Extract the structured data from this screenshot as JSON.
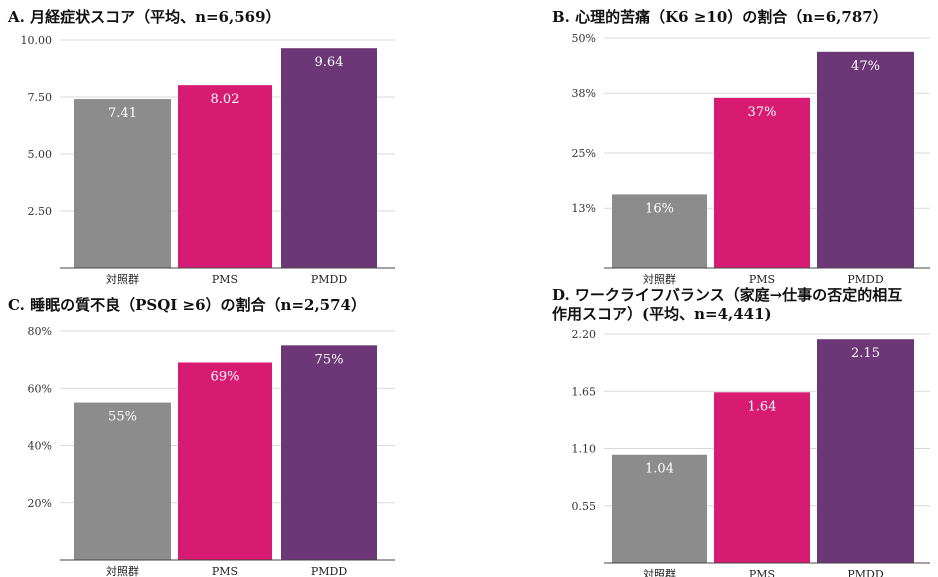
{
  "colors": {
    "control": "#8c8c8c",
    "pms": "#d81b72",
    "pmdd": "#6c3777"
  },
  "chart_data": [
    {
      "type": "bar",
      "title": "A. 月経症状スコア（平均、n=6,569）",
      "categories": [
        "対照群",
        "PMS",
        "PMDD"
      ],
      "values": [
        7.41,
        8.02,
        9.64
      ],
      "value_labels": [
        "7.41",
        "8.02",
        "9.64"
      ],
      "yticks": [
        "2.50",
        "5.00",
        "7.50",
        "10.00"
      ],
      "ylim": [
        0,
        10
      ]
    },
    {
      "type": "bar",
      "title": "B. 心理的苦痛（K6 ≥10）の割合（n=6,787）",
      "categories": [
        "対照群",
        "PMS",
        "PMDD"
      ],
      "values": [
        16,
        37,
        47
      ],
      "value_labels": [
        "16%",
        "37%",
        "47%"
      ],
      "yticks": [
        "13%",
        "25%",
        "38%",
        "50%"
      ],
      "ylim": [
        0,
        50
      ]
    },
    {
      "type": "bar",
      "title": "C. 睡眠の質不良（PSQI ≥6）の割合（n=2,574）",
      "categories": [
        "対照群",
        "PMS",
        "PMDD"
      ],
      "values": [
        55,
        69,
        75
      ],
      "value_labels": [
        "55%",
        "69%",
        "75%"
      ],
      "yticks": [
        "20%",
        "40%",
        "60%",
        "80%"
      ],
      "ylim": [
        0,
        80
      ]
    },
    {
      "type": "bar",
      "title": "D. ワークライフバランス（家庭→仕事の否定的相互作用スコア）(平均、n=4,441)",
      "title_lines": [
        "D. ワークライフバランス（家庭→仕事の否定的相互",
        "作用スコア）(平均、n=4,441)"
      ],
      "categories": [
        "対照群",
        "PMS",
        "PMDD"
      ],
      "values": [
        1.04,
        1.64,
        2.15
      ],
      "value_labels": [
        "1.04",
        "1.64",
        "2.15"
      ],
      "yticks": [
        "0.55",
        "1.10",
        "1.65",
        "2.20"
      ],
      "ylim": [
        0,
        2.2
      ]
    }
  ]
}
